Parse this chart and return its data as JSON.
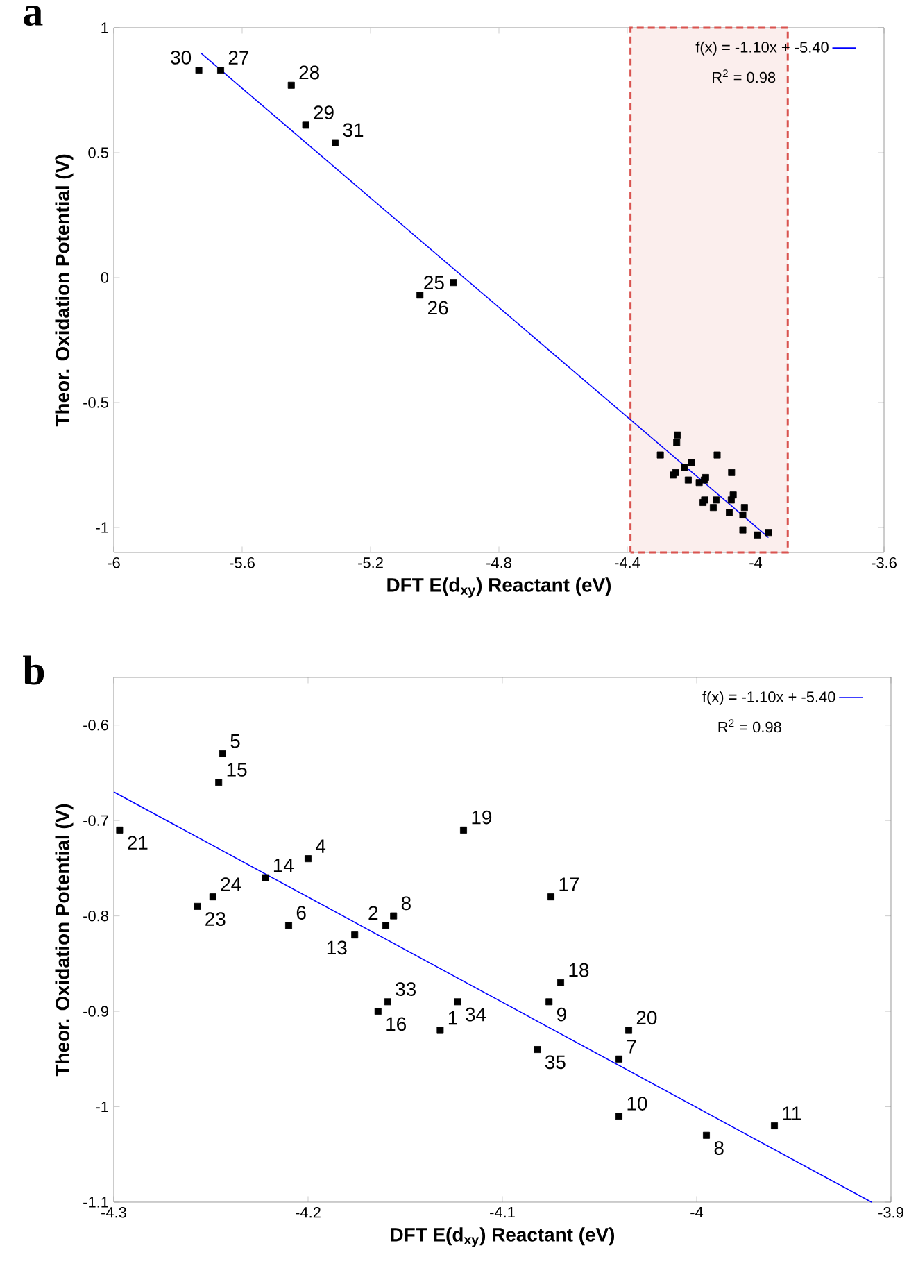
{
  "chart_data": [
    {
      "type": "scatter",
      "title": "a",
      "xlabel": "DFT E(d$_{xy}$) Reactant (eV)",
      "ylabel": "Theor. Oxidation Potential (V)",
      "xlim": [
        -6,
        -3.6
      ],
      "ylim": [
        -1.1,
        1
      ],
      "xticks": [
        -6,
        -5.6,
        -5.2,
        -4.8,
        -4.4,
        -4,
        -3.6
      ],
      "yticks": [
        -1,
        -0.5,
        0,
        0.5,
        1
      ],
      "marker": "square",
      "legend": "top right",
      "grid": false,
      "series": [
        {
          "type": "scatter",
          "color": "#000000",
          "x": [
            -4.132,
            -4.16,
            -4.2,
            -4.244,
            -4.21,
            -4.04,
            -4.156,
            -3.995,
            -4.076,
            -4.04,
            -3.96,
            -4.176,
            -4.222,
            -4.246,
            -4.164,
            -4.075,
            -4.07,
            -4.12,
            -4.035,
            -4.297,
            -4.257,
            -4.249,
            -4.159,
            -4.123,
            -4.082,
            -5.735,
            -5.667,
            -5.447,
            -5.402,
            -5.31,
            -5.046,
            -4.942
          ],
          "values": [
            -0.92,
            -0.81,
            -0.74,
            -0.63,
            -0.81,
            -0.95,
            -0.8,
            -1.03,
            -0.89,
            -1.01,
            -1.02,
            -0.82,
            -0.76,
            -0.66,
            -0.9,
            -0.78,
            -0.87,
            -0.71,
            -0.92,
            -0.71,
            -0.79,
            -0.78,
            -0.89,
            -0.89,
            -0.94,
            0.83,
            0.83,
            0.77,
            0.61,
            0.54,
            -0.07,
            -0.02
          ]
        },
        {
          "type": "line",
          "name": "f(x) = -1.10x + -5.40",
          "color": "#0000ff",
          "marker": "none",
          "x": [
            -5.73,
            -3.96
          ],
          "values": [
            0.9,
            -1.04
          ]
        }
      ],
      "bands": [
        {
          "axis": "x",
          "from": -4.39,
          "to": -3.9,
          "color": "#d9534f"
        }
      ],
      "annotations": [
        "R$^{2}$ = 0.98",
        {
          "text": "30",
          "x": -5.735,
          "y": 0.83
        },
        {
          "text": "27",
          "x": -5.667,
          "y": 0.83
        },
        {
          "text": "28",
          "x": -5.447,
          "y": 0.77
        },
        {
          "text": "29",
          "x": -5.402,
          "y": 0.61
        },
        {
          "text": "31",
          "x": -5.31,
          "y": 0.54
        },
        {
          "text": "26",
          "x": -5.046,
          "y": -0.07
        },
        {
          "text": "25",
          "x": -4.942,
          "y": -0.02
        }
      ]
    },
    {
      "type": "scatter",
      "title": "b",
      "xlabel": "DFT E(d$_{xy}$) Reactant (eV)",
      "ylabel": "Theor. Oxidation Potential (V)",
      "xlim": [
        -4.3,
        -3.9
      ],
      "ylim": [
        -1.1,
        -0.55
      ],
      "xticks": [
        -4.3,
        -4.2,
        -4.1,
        -4,
        -3.9
      ],
      "yticks": [
        -1.1,
        -1,
        -0.9,
        -0.8,
        -0.7,
        -0.6
      ],
      "marker": "square",
      "legend": "top right",
      "grid": false,
      "series": [
        {
          "type": "scatter",
          "color": "#000000",
          "x": [
            -4.132,
            -4.16,
            -4.2,
            -4.244,
            -4.21,
            -4.04,
            -4.156,
            -3.995,
            -4.076,
            -4.04,
            -3.96,
            -4.176,
            -4.222,
            -4.246,
            -4.164,
            -4.075,
            -4.07,
            -4.12,
            -4.035,
            -4.297,
            -4.257,
            -4.249,
            -4.159,
            -4.123,
            -4.082
          ],
          "values": [
            -0.92,
            -0.81,
            -0.74,
            -0.63,
            -0.81,
            -0.95,
            -0.8,
            -1.03,
            -0.89,
            -1.01,
            -1.02,
            -0.82,
            -0.76,
            -0.66,
            -0.9,
            -0.78,
            -0.87,
            -0.71,
            -0.92,
            -0.71,
            -0.79,
            -0.78,
            -0.89,
            -0.89,
            -0.94
          ]
        },
        {
          "type": "line",
          "name": "f(x) = -1.10x + -5.40",
          "color": "#0000ff",
          "marker": "none",
          "x": [
            -4.3,
            -3.91
          ],
          "values": [
            -0.67,
            -1.1
          ]
        }
      ],
      "annotations": [
        "R$^{2}$ = 0.98",
        {
          "text": "1",
          "x": -4.132,
          "y": -0.92
        },
        {
          "text": "2",
          "x": -4.16,
          "y": -0.81
        },
        {
          "text": "4",
          "x": -4.2,
          "y": -0.74
        },
        {
          "text": "5",
          "x": -4.244,
          "y": -0.63
        },
        {
          "text": "6",
          "x": -4.21,
          "y": -0.81
        },
        {
          "text": "7",
          "x": -4.04,
          "y": -0.95
        },
        {
          "text": "8",
          "x": -4.156,
          "y": -0.8
        },
        {
          "text": "8",
          "x": -3.995,
          "y": -1.03
        },
        {
          "text": "9",
          "x": -4.076,
          "y": -0.89
        },
        {
          "text": "10",
          "x": -4.04,
          "y": -1.01
        },
        {
          "text": "11",
          "x": -3.96,
          "y": -1.02
        },
        {
          "text": "13",
          "x": -4.176,
          "y": -0.82
        },
        {
          "text": "14",
          "x": -4.222,
          "y": -0.76
        },
        {
          "text": "15",
          "x": -4.246,
          "y": -0.66
        },
        {
          "text": "16",
          "x": -4.164,
          "y": -0.9
        },
        {
          "text": "17",
          "x": -4.075,
          "y": -0.78
        },
        {
          "text": "18",
          "x": -4.07,
          "y": -0.87
        },
        {
          "text": "19",
          "x": -4.12,
          "y": -0.71
        },
        {
          "text": "20",
          "x": -4.035,
          "y": -0.92
        },
        {
          "text": "21",
          "x": -4.297,
          "y": -0.71
        },
        {
          "text": "23",
          "x": -4.257,
          "y": -0.79
        },
        {
          "text": "24",
          "x": -4.249,
          "y": -0.78
        },
        {
          "text": "33",
          "x": -4.159,
          "y": -0.89
        },
        {
          "text": "34",
          "x": -4.123,
          "y": -0.89
        },
        {
          "text": "35",
          "x": -4.082,
          "y": -0.94
        }
      ]
    }
  ]
}
